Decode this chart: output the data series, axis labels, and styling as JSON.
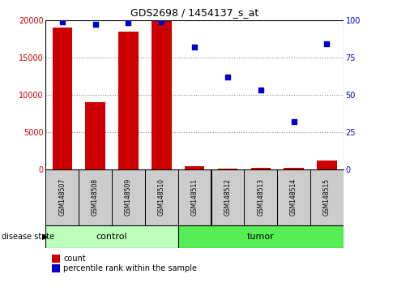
{
  "title": "GDS2698 / 1454137_s_at",
  "samples": [
    "GSM148507",
    "GSM148508",
    "GSM148509",
    "GSM148510",
    "GSM148511",
    "GSM148512",
    "GSM148513",
    "GSM148514",
    "GSM148515"
  ],
  "counts": [
    19000,
    9000,
    18500,
    20000,
    400,
    100,
    250,
    200,
    1200
  ],
  "percentile": [
    99,
    97,
    98,
    99,
    82,
    62,
    53,
    32,
    84
  ],
  "groups": [
    "control",
    "control",
    "control",
    "control",
    "tumor",
    "tumor",
    "tumor",
    "tumor",
    "tumor"
  ],
  "left_ylim": [
    0,
    20000
  ],
  "right_ylim": [
    0,
    100
  ],
  "left_yticks": [
    0,
    5000,
    10000,
    15000,
    20000
  ],
  "right_yticks": [
    0,
    25,
    50,
    75,
    100
  ],
  "left_color": "#cc0000",
  "right_color": "#0000cc",
  "bar_color": "#cc0000",
  "dot_color": "#0000cc",
  "control_color": "#bbffbb",
  "tumor_color": "#55ee55",
  "tick_bg_color": "#cccccc",
  "grid_color": "#888888",
  "n_control": 4,
  "n_tumor": 5
}
